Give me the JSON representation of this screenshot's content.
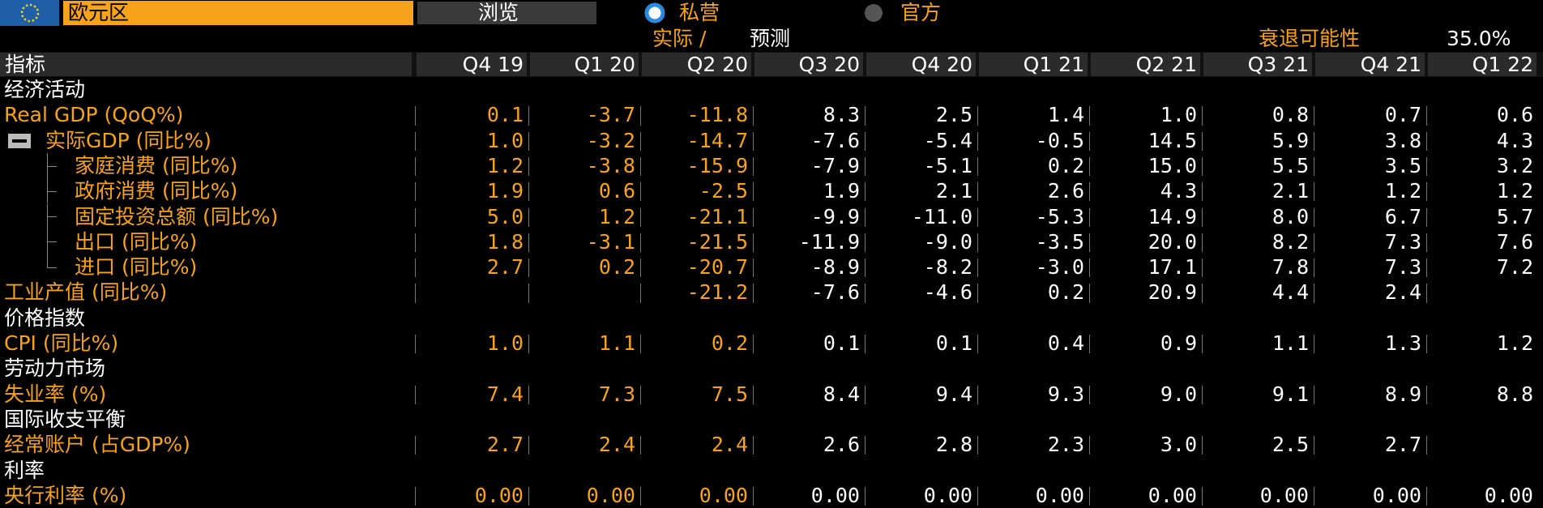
{
  "header": {
    "region": "欧元区",
    "browse": "浏览",
    "options": [
      "私营",
      "官方"
    ],
    "actual": "实际 /",
    "forecast": "预测",
    "recession_label": "衰退可能性",
    "recession_value": "35.0%"
  },
  "table": {
    "columns": [
      "指标",
      "Q4 19",
      "Q1 20",
      "Q2 20",
      "Q3 20",
      "Q4 20",
      "Q1 21",
      "Q2 21",
      "Q3 21",
      "Q4 21",
      "Q1 22"
    ],
    "sections": [
      {
        "title": "经济活动",
        "rows": [
          {
            "label": "Real GDP (QoQ%)",
            "values": [
              "0.1",
              "-3.7",
              "-11.8",
              "8.3",
              "2.5",
              "1.4",
              "1.0",
              "0.8",
              "0.7",
              "0.6"
            ]
          },
          {
            "label": "实际GDP (同比%)",
            "values": [
              "1.0",
              "-3.2",
              "-14.7",
              "-7.6",
              "-5.4",
              "-0.5",
              "14.5",
              "5.9",
              "3.8",
              "4.3"
            ],
            "children": [
              {
                "label": "家庭消费 (同比%)",
                "values": [
                  "1.2",
                  "-3.8",
                  "-15.9",
                  "-7.9",
                  "-5.1",
                  "0.2",
                  "15.0",
                  "5.5",
                  "3.5",
                  "3.2"
                ]
              },
              {
                "label": "政府消费 (同比%)",
                "values": [
                  "1.9",
                  "0.6",
                  "-2.5",
                  "1.9",
                  "2.1",
                  "2.6",
                  "4.3",
                  "2.1",
                  "1.2",
                  "1.2"
                ]
              },
              {
                "label": "固定投资总额 (同比%)",
                "values": [
                  "5.0",
                  "1.2",
                  "-21.1",
                  "-9.9",
                  "-11.0",
                  "-5.3",
                  "14.9",
                  "8.0",
                  "6.7",
                  "5.7"
                ]
              },
              {
                "label": "出口 (同比%)",
                "values": [
                  "1.8",
                  "-3.1",
                  "-21.5",
                  "-11.9",
                  "-9.0",
                  "-3.5",
                  "20.0",
                  "8.2",
                  "7.3",
                  "7.6"
                ]
              },
              {
                "label": "进口 (同比%)",
                "values": [
                  "2.7",
                  "0.2",
                  "-20.7",
                  "-8.9",
                  "-8.2",
                  "-3.0",
                  "17.1",
                  "7.8",
                  "7.3",
                  "7.2"
                ]
              }
            ]
          },
          {
            "label": "工业产值 (同比%)",
            "values": [
              null,
              null,
              "-21.2",
              "-7.6",
              "-4.6",
              "0.2",
              "20.9",
              "4.4",
              "2.4",
              null
            ]
          }
        ]
      },
      {
        "title": "价格指数",
        "rows": [
          {
            "label": "CPI (同比%)",
            "values": [
              "1.0",
              "1.1",
              "0.2",
              "0.1",
              "0.1",
              "0.4",
              "0.9",
              "1.1",
              "1.3",
              "1.2"
            ]
          }
        ]
      },
      {
        "title": "劳动力市场",
        "rows": [
          {
            "label": "失业率 (%)",
            "values": [
              "7.4",
              "7.3",
              "7.5",
              "8.4",
              "9.4",
              "9.3",
              "9.0",
              "9.1",
              "8.9",
              "8.8"
            ]
          }
        ]
      },
      {
        "title": "国际收支平衡",
        "rows": [
          {
            "label": "经常账户 (占GDP%)",
            "values": [
              "2.7",
              "2.4",
              "2.4",
              "2.6",
              "2.8",
              "2.3",
              "3.0",
              "2.5",
              "2.7",
              null
            ]
          }
        ]
      },
      {
        "title": "利率",
        "rows": [
          {
            "label": "央行利率 (%)",
            "values": [
              "0.00",
              "0.00",
              "0.00",
              "0.00",
              "0.00",
              "0.00",
              "0.00",
              "0.00",
              "0.00",
              "0.00"
            ]
          }
        ]
      }
    ]
  }
}
